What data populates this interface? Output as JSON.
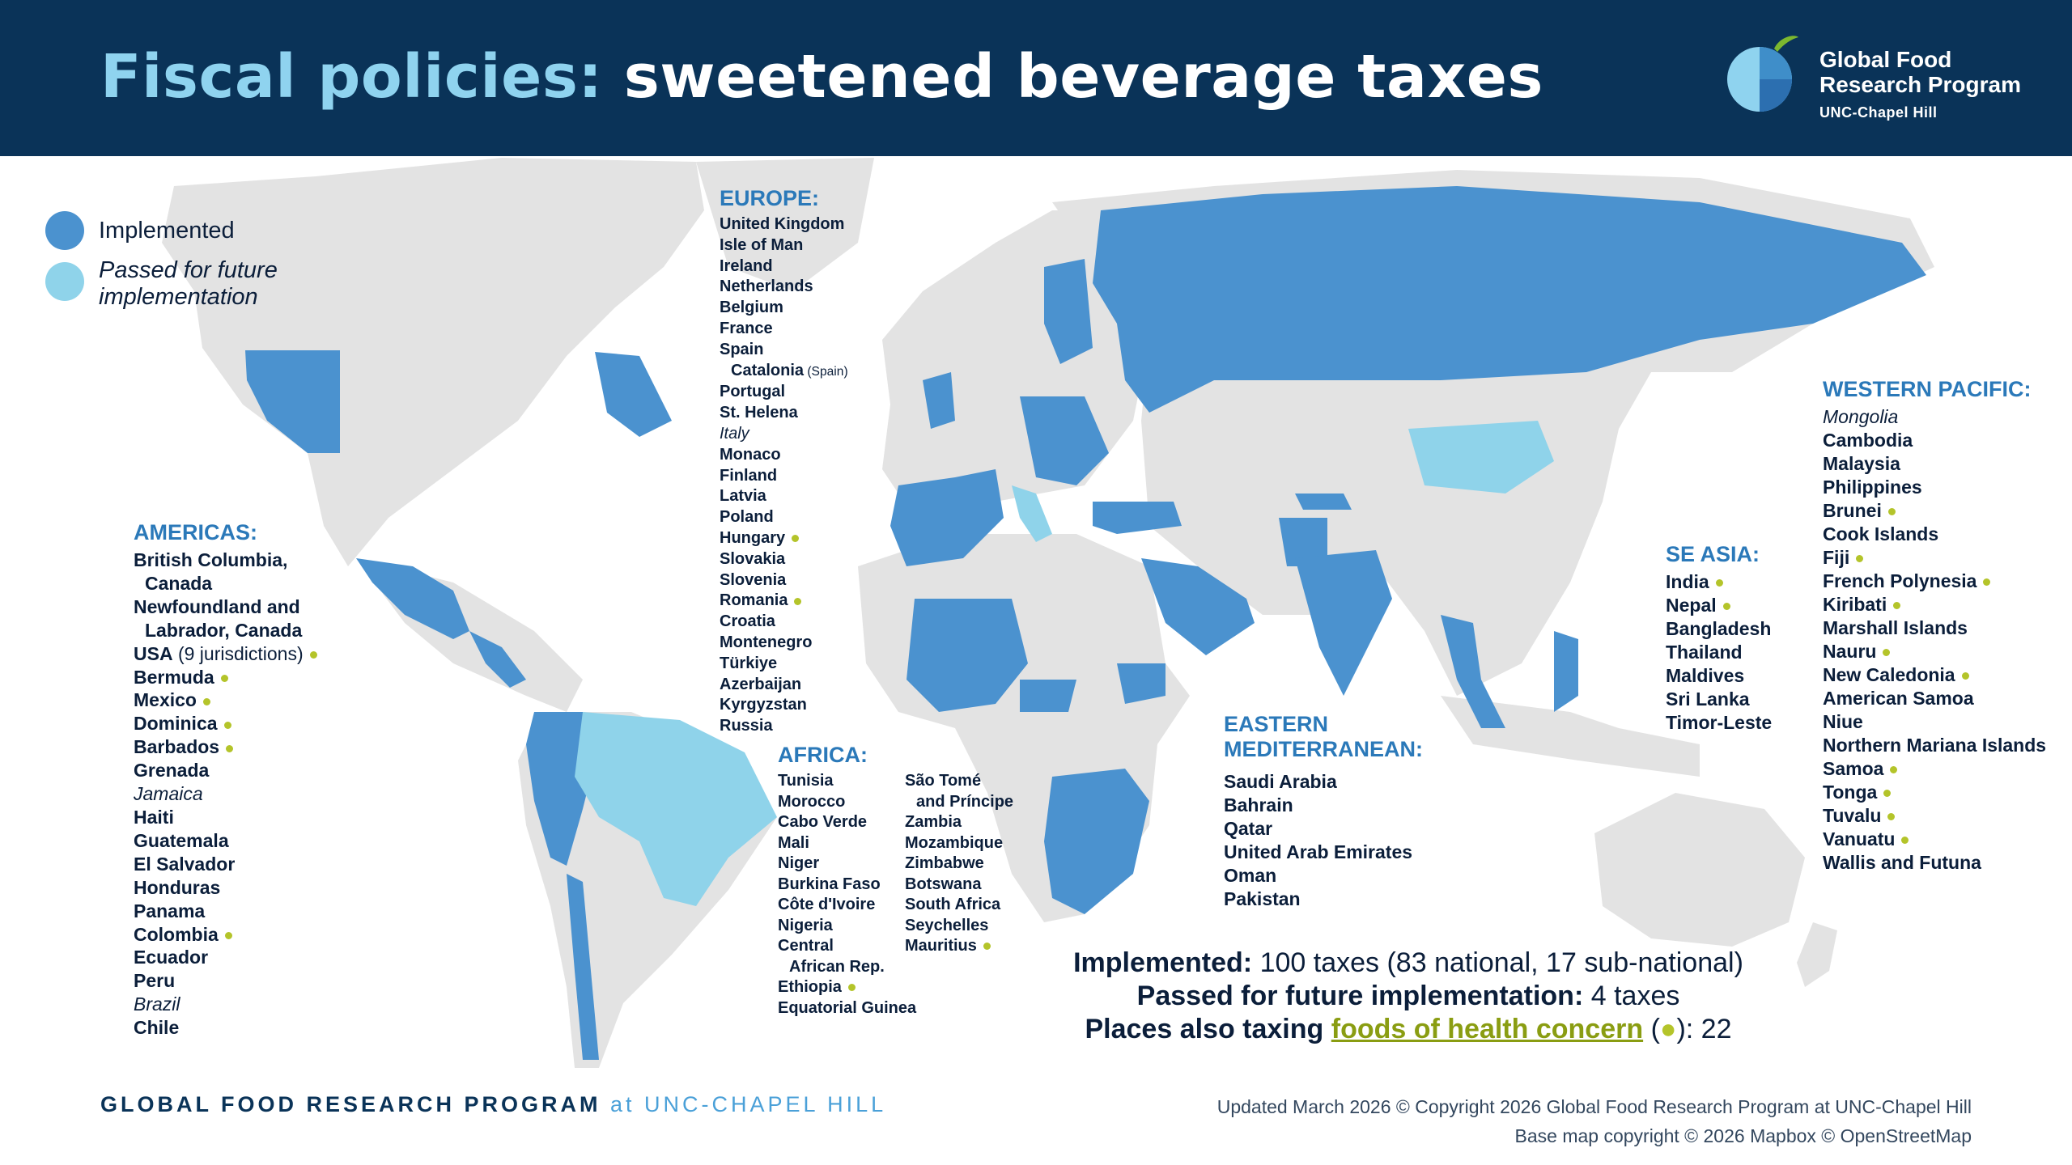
{
  "header": {
    "title_part1": "Fiscal policies:",
    "title_part2": "sweetened beverage taxes",
    "logo": {
      "line1": "Global Food",
      "line2": "Research Program",
      "line3": "UNC-Chapel Hill",
      "colors": [
        "#8fd3ef",
        "#3f8ec9",
        "#7cb82f"
      ]
    }
  },
  "colors": {
    "header_bg": "#0a3358",
    "implemented": "#4b92cf",
    "passed": "#8fd3ea",
    "land": "#e3e3e3",
    "foods_dot": "#b4c42a",
    "region_title": "#2b79b9"
  },
  "legend": {
    "implemented": "Implemented",
    "passed": "Passed for future implementation"
  },
  "regions": {
    "americas": {
      "title": "AMERICAS:",
      "items": [
        {
          "name": "British Columbia,",
          "dot": false
        },
        {
          "name": "Canada",
          "dot": false
        },
        {
          "name": "Newfoundland and",
          "dot": false
        },
        {
          "name": "Labrador, Canada",
          "dot": false
        },
        {
          "name": "USA",
          "note": "(9 jurisdictions)",
          "dot": true
        },
        {
          "name": "Bermuda",
          "dot": true
        },
        {
          "name": "Mexico",
          "dot": true
        },
        {
          "name": "Dominica",
          "dot": true
        },
        {
          "name": "Barbados",
          "dot": true
        },
        {
          "name": "Grenada",
          "dot": false
        },
        {
          "name": "Jamaica",
          "dot": false,
          "passed": true
        },
        {
          "name": "Haiti",
          "dot": false
        },
        {
          "name": "Guatemala",
          "dot": false
        },
        {
          "name": "El Salvador",
          "dot": false
        },
        {
          "name": "Honduras",
          "dot": false
        },
        {
          "name": "Panama",
          "dot": false
        },
        {
          "name": "Colombia",
          "dot": true
        },
        {
          "name": "Ecuador",
          "dot": false
        },
        {
          "name": "Peru",
          "dot": false
        },
        {
          "name": "Brazil",
          "dot": false,
          "passed": true
        },
        {
          "name": "Chile",
          "dot": false
        }
      ]
    },
    "europe": {
      "title": "EUROPE:",
      "items": [
        {
          "name": "United Kingdom",
          "dot": false
        },
        {
          "name": "Isle of Man",
          "dot": false
        },
        {
          "name": "Ireland",
          "dot": false
        },
        {
          "name": "Netherlands",
          "dot": false
        },
        {
          "name": "Belgium",
          "dot": false
        },
        {
          "name": "France",
          "dot": false
        },
        {
          "name": "Spain",
          "dot": false
        },
        {
          "name": "Catalonia",
          "note": "(Spain)",
          "dot": false
        },
        {
          "name": "Portugal",
          "dot": false
        },
        {
          "name": "St. Helena",
          "dot": false
        },
        {
          "name": "Italy",
          "dot": false,
          "passed": true
        },
        {
          "name": "Monaco",
          "dot": false
        },
        {
          "name": "Finland",
          "dot": false
        },
        {
          "name": "Latvia",
          "dot": false
        },
        {
          "name": "Poland",
          "dot": false
        },
        {
          "name": "Hungary",
          "dot": true
        },
        {
          "name": "Slovakia",
          "dot": false
        },
        {
          "name": "Slovenia",
          "dot": false
        },
        {
          "name": "Romania",
          "dot": true
        },
        {
          "name": "Croatia",
          "dot": false
        },
        {
          "name": "Montenegro",
          "dot": false
        },
        {
          "name": "Türkiye",
          "dot": false
        },
        {
          "name": "Azerbaijan",
          "dot": false
        },
        {
          "name": "Kyrgyzstan",
          "dot": false
        },
        {
          "name": "Russia",
          "dot": false
        }
      ]
    },
    "africa": {
      "title": "AFRICA:",
      "col1": [
        {
          "name": "Tunisia",
          "dot": false
        },
        {
          "name": "Morocco",
          "dot": false
        },
        {
          "name": "Cabo Verde",
          "dot": false
        },
        {
          "name": "Mali",
          "dot": false
        },
        {
          "name": "Niger",
          "dot": false
        },
        {
          "name": "Burkina Faso",
          "dot": false
        },
        {
          "name": "Côte d'Ivoire",
          "dot": false
        },
        {
          "name": "Nigeria",
          "dot": false
        },
        {
          "name": "Central",
          "dot": false
        },
        {
          "name": "African Rep.",
          "dot": false
        },
        {
          "name": "Ethiopia",
          "dot": true
        },
        {
          "name": "Equatorial Guinea",
          "dot": false
        }
      ],
      "col2": [
        {
          "name": "São Tomé",
          "dot": false
        },
        {
          "name": "and Príncipe",
          "dot": false
        },
        {
          "name": "Zambia",
          "dot": false
        },
        {
          "name": "Mozambique",
          "dot": false
        },
        {
          "name": "Zimbabwe",
          "dot": false
        },
        {
          "name": "Botswana",
          "dot": false
        },
        {
          "name": "South Africa",
          "dot": false
        },
        {
          "name": "Seychelles",
          "dot": false
        },
        {
          "name": "Mauritius",
          "dot": true
        }
      ]
    },
    "eastern_mediterranean": {
      "title_line1": "EASTERN",
      "title_line2": "MEDITERRANEAN:",
      "items": [
        {
          "name": "Saudi Arabia",
          "dot": false
        },
        {
          "name": "Bahrain",
          "dot": false
        },
        {
          "name": "Qatar",
          "dot": false
        },
        {
          "name": "United Arab Emirates",
          "dot": false
        },
        {
          "name": "Oman",
          "dot": false
        },
        {
          "name": "Pakistan",
          "dot": false
        }
      ]
    },
    "se_asia": {
      "title": "SE ASIA:",
      "items": [
        {
          "name": "India",
          "dot": true
        },
        {
          "name": "Nepal",
          "dot": true
        },
        {
          "name": "Bangladesh",
          "dot": false
        },
        {
          "name": "Thailand",
          "dot": false
        },
        {
          "name": "Maldives",
          "dot": false
        },
        {
          "name": "Sri Lanka",
          "dot": false
        },
        {
          "name": "Timor-Leste",
          "dot": false
        }
      ]
    },
    "western_pacific": {
      "title": "WESTERN PACIFIC:",
      "items": [
        {
          "name": "Mongolia",
          "dot": false,
          "passed": true
        },
        {
          "name": "Cambodia",
          "dot": false
        },
        {
          "name": "Malaysia",
          "dot": false
        },
        {
          "name": "Philippines",
          "dot": false
        },
        {
          "name": "Brunei",
          "dot": true
        },
        {
          "name": "Cook Islands",
          "dot": false
        },
        {
          "name": "Fiji",
          "dot": true
        },
        {
          "name": "French Polynesia",
          "dot": true
        },
        {
          "name": "Kiribati",
          "dot": true
        },
        {
          "name": "Marshall Islands",
          "dot": false
        },
        {
          "name": "Nauru",
          "dot": true
        },
        {
          "name": "New Caledonia",
          "dot": true
        },
        {
          "name": "American Samoa",
          "dot": false
        },
        {
          "name": "Niue",
          "dot": false
        },
        {
          "name": "Northern Mariana Islands",
          "dot": false
        },
        {
          "name": "Samoa",
          "dot": true
        },
        {
          "name": "Tonga",
          "dot": true
        },
        {
          "name": "Tuvalu",
          "dot": true
        },
        {
          "name": "Vanuatu",
          "dot": true
        },
        {
          "name": "Wallis and Futuna",
          "dot": false
        }
      ]
    }
  },
  "summary": {
    "implemented_label": "Implemented:",
    "implemented_value": "100 taxes (83 national, 17 sub-national)",
    "passed_label": "Passed for future implementation:",
    "passed_value": "4 taxes",
    "foods_label": "Places also taxing",
    "foods_link": "foods of health concern",
    "foods_open": "(",
    "foods_dot": "●",
    "foods_close": "):",
    "foods_value": "22"
  },
  "footer": {
    "left_main": "GLOBAL FOOD RESEARCH PROGRAM",
    "left_at": "at UNC-CHAPEL HILL",
    "updated": "Updated March 2026",
    "copyright": "© Copyright 2026 Global Food Research Program at UNC-Chapel Hill",
    "basemap": "Base map copyright © 2026 Mapbox © OpenStreetMap"
  }
}
